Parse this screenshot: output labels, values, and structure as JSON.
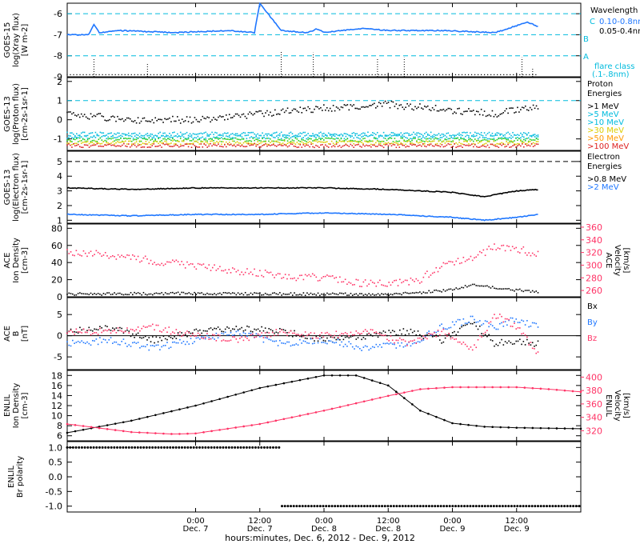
{
  "colors": {
    "axis": "#000000",
    "blue": "#1f77ff",
    "pink": "#ff3366",
    "cyan": "#00bbdd",
    "green": "#22cc22",
    "yellow": "#ddcc00",
    "orange": "#ff9900",
    "red": "#dd2222",
    "magenta": "#ff3399"
  },
  "x_axis": {
    "label": "hours:minutes, Dec. 6, 2012 - Dec. 9, 2012",
    "range_hours": [
      0,
      96
    ],
    "ticks": [
      {
        "t": 24,
        "time": "0:00",
        "day": "Dec. 7"
      },
      {
        "t": 36,
        "time": "12:00",
        "day": "Dec. 7"
      },
      {
        "t": 48,
        "time": "0:00",
        "day": "Dec. 8"
      },
      {
        "t": 60,
        "time": "12:00",
        "day": "Dec. 8"
      },
      {
        "t": 72,
        "time": "0:00",
        "day": "Dec. 9"
      },
      {
        "t": 84,
        "time": "12:00",
        "day": "Dec. 9"
      }
    ]
  },
  "chart_data": [
    {
      "type": "line",
      "ylabel": [
        "GOES-15",
        "log(Xray flux)",
        "[W m-2]"
      ],
      "ylim": [
        -9,
        -5.5
      ],
      "yticks": [
        -9,
        -8,
        -7,
        -6
      ],
      "ytick_labels": [
        "-9",
        "-8",
        "-7",
        "-6"
      ],
      "dashed_levels": [
        -6,
        -7,
        -8
      ],
      "flare_class_letters": [
        "C",
        "B",
        "A"
      ],
      "legend": {
        "title": "Wavelength",
        "entries": [
          "0.10-0.8nm",
          "0.05-0.4nm"
        ],
        "note": [
          "flare class",
          "(.1-.8nm)"
        ]
      },
      "series": [
        {
          "name": "0.10-0.8nm",
          "x": [
            0,
            4,
            5,
            6,
            10,
            20,
            30,
            35,
            36,
            40,
            45,
            46,
            46.5,
            48,
            55,
            60,
            70,
            80,
            86,
            88
          ],
          "y": [
            -7.0,
            -7.0,
            -6.5,
            -6.9,
            -6.8,
            -6.9,
            -6.8,
            -6.9,
            -5.5,
            -6.8,
            -6.9,
            -6.8,
            -6.7,
            -6.9,
            -6.7,
            -6.8,
            -6.8,
            -6.9,
            -6.4,
            -6.6
          ]
        }
      ]
    },
    {
      "type": "scatter",
      "ylabel": [
        "GOES-13",
        "log(Proton flux)",
        "[cm-2s-1sr-1]"
      ],
      "ylim": [
        -1.6,
        2.2
      ],
      "yticks": [
        -1,
        0,
        1,
        2
      ],
      "ytick_labels": [
        "-1",
        "0",
        "1",
        "2"
      ],
      "dashed_levels": [
        1
      ],
      "legend": {
        "title": [
          "Proton",
          "Energies"
        ],
        "entries": [
          ">1 MeV",
          ">5 MeV",
          ">10 MeV",
          ">30 MeV",
          ">50 MeV",
          ">100 MeV"
        ]
      },
      "series": [
        {
          "name": ">1 MeV",
          "x": [
            0,
            12,
            24,
            36,
            48,
            60,
            72,
            80,
            88
          ],
          "y": [
            0.3,
            0.0,
            0.0,
            0.3,
            0.6,
            0.8,
            0.5,
            0.3,
            0.7
          ]
        },
        {
          "name": ">5 MeV",
          "x": [
            0,
            88
          ],
          "y": [
            -0.75,
            -0.75
          ]
        },
        {
          "name": ">10 MeV",
          "x": [
            0,
            88
          ],
          "y": [
            -0.9,
            -0.9
          ]
        },
        {
          "name": ">30 MeV",
          "x": [
            0,
            88
          ],
          "y": [
            -1.05,
            -1.05
          ]
        },
        {
          "name": ">50 MeV",
          "x": [
            0,
            88
          ],
          "y": [
            -1.2,
            -1.2
          ]
        },
        {
          "name": ">100 MeV",
          "x": [
            0,
            88
          ],
          "y": [
            -1.35,
            -1.35
          ]
        }
      ]
    },
    {
      "type": "line",
      "ylabel": [
        "GOES-13",
        "log(Electron flux)",
        "[cm-2s-1sr-1]"
      ],
      "ylim": [
        0.8,
        5.7
      ],
      "yticks": [
        1,
        2,
        3,
        4,
        5
      ],
      "ytick_labels": [
        "1",
        "2",
        "3",
        "4",
        "5"
      ],
      "dashed_levels": [
        5
      ],
      "legend": {
        "title": [
          "Electron",
          "Energies"
        ],
        "entries": [
          ">0.8 MeV",
          ">2 MeV"
        ]
      },
      "series": [
        {
          "name": ">0.8 MeV",
          "x": [
            0,
            12,
            24,
            36,
            48,
            60,
            72,
            78,
            84,
            88
          ],
          "y": [
            3.2,
            3.1,
            3.2,
            3.2,
            3.2,
            3.1,
            2.9,
            2.6,
            3.0,
            3.1
          ]
        },
        {
          "name": ">2 MeV",
          "x": [
            0,
            12,
            24,
            36,
            48,
            60,
            72,
            78,
            84,
            88
          ],
          "y": [
            1.4,
            1.3,
            1.4,
            1.4,
            1.5,
            1.4,
            1.2,
            1.0,
            1.2,
            1.4
          ]
        }
      ]
    },
    {
      "type": "scatter",
      "ylabel": [
        "ACE",
        "Ion Density",
        "[cm-3]"
      ],
      "ylabel_right": [
        "ACE",
        "Velocity",
        "[km/s]"
      ],
      "ylim": [
        0,
        85
      ],
      "yticks": [
        0,
        20,
        40,
        60,
        80
      ],
      "ytick_labels": [
        "0",
        "20",
        "40",
        "60",
        "80"
      ],
      "ylim_right": [
        250,
        365
      ],
      "yticks_right": [
        260,
        280,
        300,
        320,
        340,
        360
      ],
      "ytick_labels_right": [
        "260",
        "280",
        "300",
        "320",
        "340",
        "360"
      ],
      "series": [
        {
          "name": "Ion Density",
          "axis": "left",
          "x": [
            0,
            24,
            48,
            60,
            66,
            72,
            76,
            80,
            84,
            88
          ],
          "y": [
            3,
            4,
            3,
            3,
            5,
            8,
            15,
            10,
            8,
            6
          ]
        },
        {
          "name": "Velocity",
          "axis": "right",
          "x": [
            0,
            6,
            12,
            18,
            24,
            30,
            36,
            42,
            48,
            54,
            60,
            66,
            68,
            72,
            76,
            80,
            84,
            88
          ],
          "y": [
            320,
            318,
            312,
            305,
            300,
            292,
            288,
            282,
            280,
            272,
            270,
            275,
            290,
            305,
            310,
            330,
            325,
            318
          ]
        }
      ]
    },
    {
      "type": "scatter",
      "ylabel": [
        "ACE",
        "B",
        "[nT]"
      ],
      "ylim": [
        -8,
        9
      ],
      "yticks": [
        -5,
        0,
        5
      ],
      "ytick_labels": [
        "-5",
        "0",
        "5"
      ],
      "zero_line": true,
      "legend": {
        "entries": [
          "Bx",
          "By",
          "Bz"
        ]
      },
      "series": [
        {
          "name": "Bx",
          "x": [
            0,
            8,
            16,
            24,
            32,
            40,
            48,
            56,
            64,
            70,
            76,
            80,
            84,
            88
          ],
          "y": [
            1,
            2,
            -1,
            1,
            2,
            1,
            -1,
            0,
            1,
            -1,
            3,
            -2,
            -1,
            -2
          ]
        },
        {
          "name": "By",
          "x": [
            0,
            8,
            16,
            24,
            32,
            40,
            48,
            56,
            64,
            70,
            76,
            80,
            84,
            88
          ],
          "y": [
            -2,
            -1,
            -3,
            -1,
            1,
            -2,
            -1,
            -3,
            -2,
            2,
            4,
            2,
            4,
            2
          ]
        },
        {
          "name": "Bz",
          "x": [
            0,
            8,
            16,
            24,
            32,
            40,
            48,
            56,
            64,
            70,
            76,
            80,
            84,
            88
          ],
          "y": [
            1,
            1,
            2,
            0,
            -1,
            1,
            0,
            1,
            -2,
            1,
            -3,
            5,
            2,
            -4
          ]
        }
      ]
    },
    {
      "type": "line",
      "ylabel": [
        "ENLIL",
        "Ion Density",
        "[cm-3]"
      ],
      "ylabel_right": [
        "ENLIL",
        "Velocity",
        "[km/s]"
      ],
      "ylim": [
        5,
        19
      ],
      "yticks": [
        6,
        8,
        10,
        12,
        14,
        16,
        18
      ],
      "ytick_labels": [
        "6",
        "8",
        "10",
        "12",
        "14",
        "16",
        "18"
      ],
      "ylim_right": [
        305,
        410
      ],
      "yticks_right": [
        320,
        340,
        360,
        380,
        400
      ],
      "ytick_labels_right": [
        "320",
        "340",
        "360",
        "380",
        "400"
      ],
      "series": [
        {
          "name": "Ion Density",
          "axis": "left",
          "x": [
            0,
            12,
            24,
            36,
            48,
            54,
            60,
            66,
            72,
            78,
            84,
            90,
            96
          ],
          "y": [
            6.6,
            9,
            12,
            15.5,
            18,
            18,
            16,
            11,
            8.5,
            7.8,
            7.6,
            7.5,
            7.4
          ]
        },
        {
          "name": "Velocity",
          "axis": "right",
          "x": [
            0,
            12,
            20,
            24,
            36,
            48,
            60,
            66,
            72,
            84,
            90,
            96
          ],
          "y": [
            330,
            318,
            315,
            316,
            330,
            350,
            372,
            382,
            385,
            385,
            382,
            378
          ]
        }
      ]
    },
    {
      "type": "scatter",
      "ylabel": [
        "ENLIL",
        "Br polarity"
      ],
      "ylim": [
        -1.2,
        1.2
      ],
      "yticks": [
        -1.0,
        -0.5,
        0.0,
        0.5,
        1.0
      ],
      "ytick_labels": [
        "-1.0",
        "-0.5",
        "0.0",
        "0.5",
        "1.0"
      ],
      "series": [
        {
          "name": "Br polarity",
          "x": [
            0,
            40,
            40.5,
            96
          ],
          "y": [
            1,
            1,
            -1,
            -1
          ]
        }
      ]
    }
  ]
}
